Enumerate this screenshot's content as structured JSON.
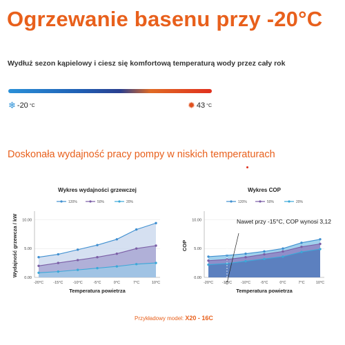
{
  "header": {
    "title": "Ogrzewanie basenu przy -20°C",
    "subtitle": "Wydłuż sezon kąpielowy i ciesz się komfortową temperaturą wody przez cały rok"
  },
  "temperature_range": {
    "min_value": "-20",
    "max_value": "43",
    "unit": "°C",
    "min_icon": "snowflake-icon",
    "max_icon": "sun-icon"
  },
  "section_title": "Doskonała wydajność pracy pompy w niskich temperaturach",
  "footnote": {
    "label": "Przykładowy model:",
    "model": "X20 - 16C"
  },
  "chart_data": [
    {
      "type": "area",
      "title": "Wykres wydajności grzewczej",
      "xlabel": "Temperatura powietrza",
      "ylabel": "Wydajność grzewcza / kW",
      "categories": [
        "-20°C",
        "-15°C",
        "-10°C",
        "-5°C",
        "0°C",
        "7°C",
        "10°C"
      ],
      "ylim": [
        0,
        11
      ],
      "yticks": [
        "0.00",
        "5.00",
        "10.00"
      ],
      "ytick_values": [
        0,
        5,
        10
      ],
      "legend": "top",
      "series": [
        {
          "name": "120%",
          "color": "#3f8fd0",
          "values": [
            3.5,
            4.0,
            4.8,
            5.6,
            6.6,
            8.3,
            9.4
          ]
        },
        {
          "name": "50%",
          "color": "#7b5ea6",
          "values": [
            2.0,
            2.5,
            3.0,
            3.5,
            4.1,
            5.0,
            5.5
          ]
        },
        {
          "name": "20%",
          "color": "#3aa8d8",
          "values": [
            0.8,
            1.0,
            1.3,
            1.6,
            1.9,
            2.3,
            2.5
          ]
        }
      ]
    },
    {
      "type": "area",
      "title": "Wykres COP",
      "xlabel": "Temperatura powietrza",
      "ylabel": "COP",
      "categories": [
        "-20°C",
        "-15°C",
        "-10°C",
        "-5°C",
        "0°C",
        "7°C",
        "10°C"
      ],
      "ylim": [
        0,
        11
      ],
      "yticks": [
        "0.00",
        "5.00",
        "10.00"
      ],
      "ytick_values": [
        0,
        5,
        10
      ],
      "legend": "top",
      "annotation": "Nawet przy -15°C, COP wynosi 3,12",
      "series": [
        {
          "name": "120%",
          "color": "#3f8fd0",
          "values": [
            3.6,
            3.8,
            4.1,
            4.5,
            5.0,
            6.0,
            6.6
          ]
        },
        {
          "name": "50%",
          "color": "#7b5ea6",
          "values": [
            2.9,
            3.1,
            3.5,
            4.0,
            4.5,
            5.3,
            5.8
          ]
        },
        {
          "name": "20%",
          "color": "#3aa8d8",
          "values": [
            2.2,
            2.4,
            2.8,
            3.2,
            3.6,
            4.4,
            4.9
          ]
        }
      ]
    }
  ]
}
